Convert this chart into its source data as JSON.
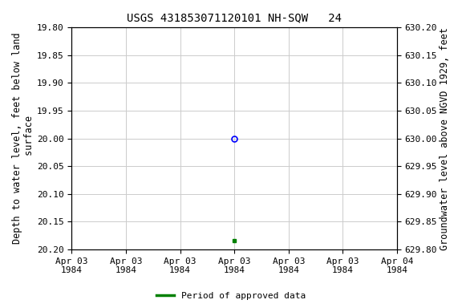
{
  "title": "USGS 431853071120101 NH-SQW   24",
  "ylabel_left": "Depth to water level, feet below land\n surface",
  "ylabel_right": "Groundwater level above NGVD 1929, feet",
  "ylim_left": [
    20.2,
    19.8
  ],
  "ylim_right": [
    629.8,
    630.2
  ],
  "yticks_left": [
    19.8,
    19.85,
    19.9,
    19.95,
    20.0,
    20.05,
    20.1,
    20.15,
    20.2
  ],
  "yticks_right": [
    629.8,
    629.85,
    629.9,
    629.95,
    630.0,
    630.05,
    630.1,
    630.15,
    630.2
  ],
  "open_circle_value": 20.0,
  "open_circle_tick_index": 3,
  "filled_square_value": 20.185,
  "filled_square_tick_index": 3,
  "legend_label": "Period of approved data",
  "legend_color": "#008000",
  "background_color": "#ffffff",
  "grid_color": "#cccccc",
  "title_fontsize": 10,
  "tick_fontsize": 8,
  "label_fontsize": 8.5,
  "n_ticks": 7,
  "xlim_hours": [
    0,
    24
  ],
  "tick_hours": [
    0,
    4,
    8,
    12,
    16,
    20,
    24
  ]
}
